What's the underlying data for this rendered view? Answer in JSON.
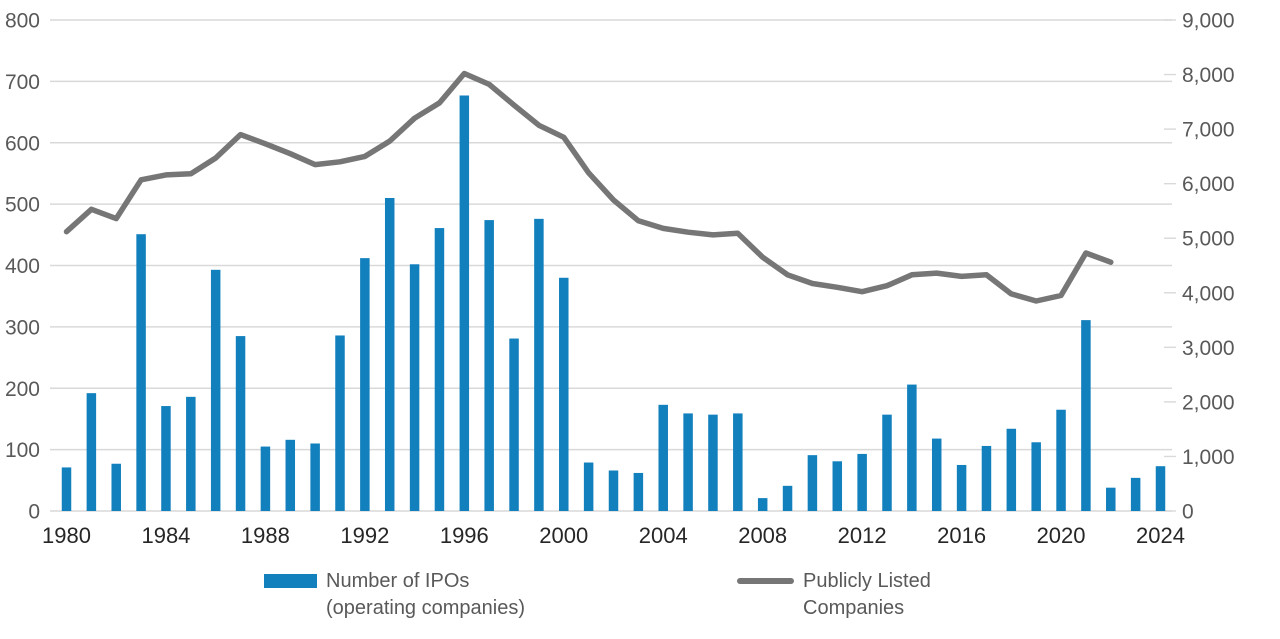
{
  "chart_data": {
    "type": "combo",
    "title": "",
    "x_years": [
      1980,
      1981,
      1982,
      1983,
      1984,
      1985,
      1986,
      1987,
      1988,
      1989,
      1990,
      1991,
      1992,
      1993,
      1994,
      1995,
      1996,
      1997,
      1998,
      1999,
      2000,
      2001,
      2002,
      2003,
      2004,
      2005,
      2006,
      2007,
      2008,
      2009,
      2010,
      2011,
      2012,
      2013,
      2014,
      2015,
      2016,
      2017,
      2018,
      2019,
      2020,
      2021,
      2022,
      2023,
      2024
    ],
    "x_tick_years": [
      1980,
      1984,
      1988,
      1992,
      1996,
      2000,
      2004,
      2008,
      2012,
      2016,
      2020,
      2024
    ],
    "x_tick_labels": [
      "1980",
      "1984",
      "1988",
      "1992",
      "1996",
      "2000",
      "2004",
      "2008",
      "2012",
      "2016",
      "2020",
      "2024"
    ],
    "series": [
      {
        "name": "Number of IPOs (operating companies)",
        "type": "bar",
        "axis": "left",
        "color": "#1380BE",
        "values": [
          71,
          192,
          77,
          451,
          171,
          186,
          393,
          285,
          105,
          116,
          110,
          286,
          412,
          510,
          402,
          461,
          677,
          474,
          281,
          476,
          380,
          79,
          66,
          62,
          173,
          159,
          157,
          159,
          21,
          41,
          91,
          81,
          93,
          157,
          206,
          118,
          75,
          106,
          134,
          112,
          165,
          311,
          38,
          54,
          73
        ]
      },
      {
        "name": "Publicly Listed Companies",
        "type": "line",
        "axis": "right",
        "color": "#767676",
        "values": [
          5120,
          5530,
          5360,
          6070,
          6160,
          6180,
          6470,
          6900,
          6730,
          6550,
          6350,
          6400,
          6500,
          6780,
          7200,
          7480,
          8020,
          7820,
          7440,
          7070,
          6850,
          6200,
          5700,
          5320,
          5180,
          5110,
          5060,
          5090,
          4650,
          4330,
          4170,
          4100,
          4020,
          4130,
          4330,
          4360,
          4300,
          4330,
          3980,
          3850,
          3950,
          4730,
          4560,
          null,
          null
        ]
      }
    ],
    "left_axis": {
      "min": 0,
      "max": 800,
      "step": 100,
      "tick_labels": [
        "0",
        "100",
        "200",
        "300",
        "400",
        "500",
        "600",
        "700",
        "800"
      ]
    },
    "right_axis": {
      "min": 0,
      "max": 9000,
      "step": 1000,
      "tick_labels": [
        "0",
        "1,000",
        "2,000",
        "3,000",
        "4,000",
        "5,000",
        "6,000",
        "7,000",
        "8,000",
        "9,000"
      ]
    },
    "grid": true,
    "legend_position": "bottom"
  },
  "legend": {
    "ipos": {
      "line1": "Number of IPOs",
      "line2": "(operating companies)"
    },
    "listed": {
      "line1": "Publicly Listed",
      "line2": "Companies"
    }
  },
  "colors": {
    "bar": "#1380BE",
    "line": "#767676",
    "grid": "#D9D9D9",
    "y_axis_text": "#595959",
    "x_axis_text": "#262626",
    "legend_text": "#595959",
    "background": "#FFFFFF"
  }
}
